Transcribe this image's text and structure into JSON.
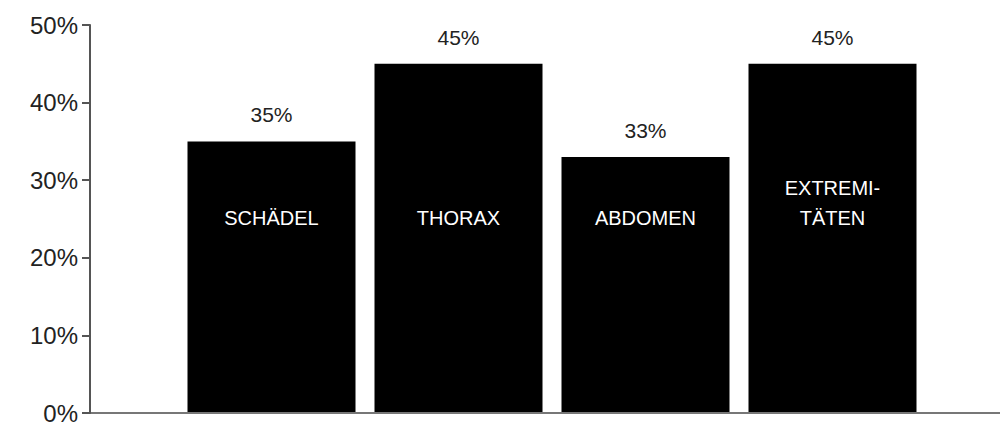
{
  "chart_data": {
    "type": "bar",
    "categories": [
      "SCHÄDEL",
      "THORAX",
      "ABDOMEN",
      "EXTREMI-TÄTEN"
    ],
    "values": [
      35,
      45,
      33,
      45
    ],
    "value_labels": [
      "35%",
      "45%",
      "33%",
      "45%"
    ],
    "color": "#000000",
    "ylim": [
      0,
      50
    ],
    "yticks": [
      {
        "value": 0,
        "label": "0%"
      },
      {
        "value": 10,
        "label": "10%"
      },
      {
        "value": 20,
        "label": "20%"
      },
      {
        "value": 30,
        "label": "30%"
      },
      {
        "value": 40,
        "label": "40%"
      },
      {
        "value": 50,
        "label": "50%"
      }
    ],
    "data_labels": true,
    "grid": false
  }
}
